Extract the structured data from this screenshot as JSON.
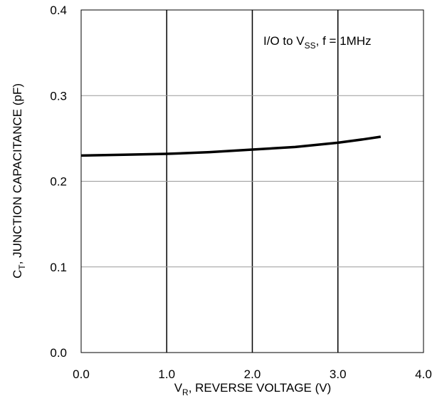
{
  "chart_data": {
    "type": "line",
    "title": "",
    "xlabel": {
      "main": "V",
      "sub": "R",
      "rest": ", REVERSE VOLTAGE (V)"
    },
    "ylabel": {
      "main": "C",
      "sub": "T",
      "rest": ", JUNCTION CAPACITANCE (pF)"
    },
    "xlim": [
      0,
      4
    ],
    "ylim": [
      0,
      0.4
    ],
    "x_ticks": [
      0,
      1,
      2,
      3,
      4
    ],
    "y_ticks": [
      0,
      0.1,
      0.2,
      0.3,
      0.4
    ],
    "x_tick_labels": [
      "0.0",
      "1.0",
      "2.0",
      "3.0",
      "4.0"
    ],
    "y_tick_labels": [
      "0.0",
      "0.1",
      "0.2",
      "0.3",
      "0.4"
    ],
    "grid": true,
    "annotation": {
      "pre": "I/O to V",
      "sub": "SS",
      "post": ", f = 1MHz"
    },
    "series": [
      {
        "x": [
          0.0,
          0.5,
          1.0,
          1.5,
          2.0,
          2.5,
          3.0,
          3.3,
          3.5
        ],
        "y": [
          0.23,
          0.231,
          0.232,
          0.234,
          0.237,
          0.24,
          0.245,
          0.249,
          0.252
        ]
      }
    ]
  }
}
